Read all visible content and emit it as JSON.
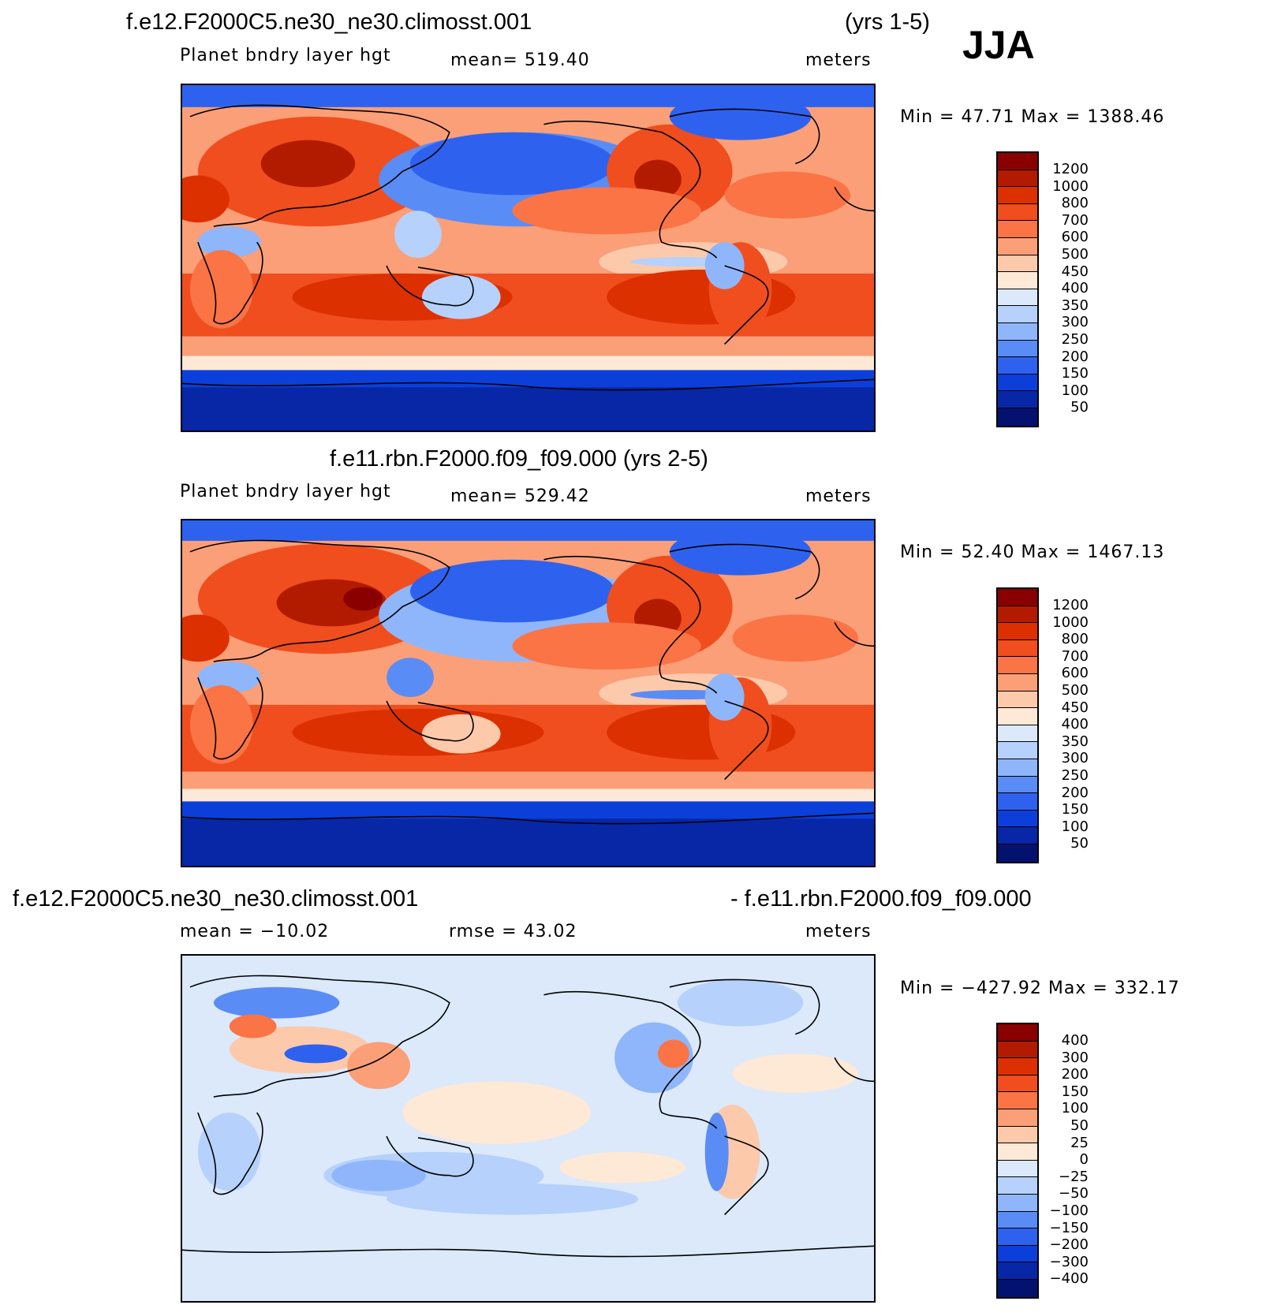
{
  "header": {
    "season": "JJA"
  },
  "panels": [
    {
      "title": "f.e12.F2000C5.ne30_ne30.climosst.001",
      "title_right": "(yrs 1-5)",
      "var_label": "Planet bndry layer hgt",
      "stat_label": "mean= 519.40",
      "units": "meters",
      "minmax": "Min =   47.71 Max = 1388.46",
      "colorbar_labels": [
        "1200",
        "1000",
        "800",
        "700",
        "600",
        "500",
        "450",
        "400",
        "350",
        "300",
        "250",
        "200",
        "150",
        "100",
        "50"
      ]
    },
    {
      "title": "f.e11.rbn.F2000.f09_f09.000 (yrs 2-5)",
      "title_right": "",
      "var_label": "Planet bndry layer hgt",
      "stat_label": "mean= 529.42",
      "units": "meters",
      "minmax": "Min =   52.40 Max = 1467.13",
      "colorbar_labels": [
        "1200",
        "1000",
        "800",
        "700",
        "600",
        "500",
        "450",
        "400",
        "350",
        "300",
        "250",
        "200",
        "150",
        "100",
        "50"
      ]
    },
    {
      "title": "f.e12.F2000C5.ne30_ne30.climosst.001",
      "title_right": "- f.e11.rbn.F2000.f09_f09.000",
      "var_label": "mean = −10.02",
      "stat_label": "rmse =   43.02",
      "units": "meters",
      "minmax": "Min = −427.92 Max = 332.17",
      "colorbar_labels": [
        "400",
        "300",
        "200",
        "150",
        "100",
        "50",
        "25",
        "0",
        "−25",
        "−50",
        "−100",
        "−150",
        "−200",
        "−300",
        "−400"
      ]
    }
  ],
  "colors": {
    "scale": [
      "#8a0000",
      "#b31b00",
      "#dd3000",
      "#f04e1e",
      "#fa7445",
      "#fb9f78",
      "#fcc9ab",
      "#fee8d6",
      "#dbe9fb",
      "#b6d1fb",
      "#8fb6fa",
      "#5a8cf5",
      "#2e62ee",
      "#0c3fd9",
      "#0827a6",
      "#03126e"
    ],
    "diff_scale": [
      "#8a0000",
      "#b31b00",
      "#dd3000",
      "#f04e1e",
      "#fa7445",
      "#fb9f78",
      "#fcc9ab",
      "#fee8d6",
      "#dbe9fb",
      "#b6d1fb",
      "#8fb6fa",
      "#5a8cf5",
      "#2e62ee",
      "#0c3fd9",
      "#0827a6",
      "#03126e"
    ]
  }
}
